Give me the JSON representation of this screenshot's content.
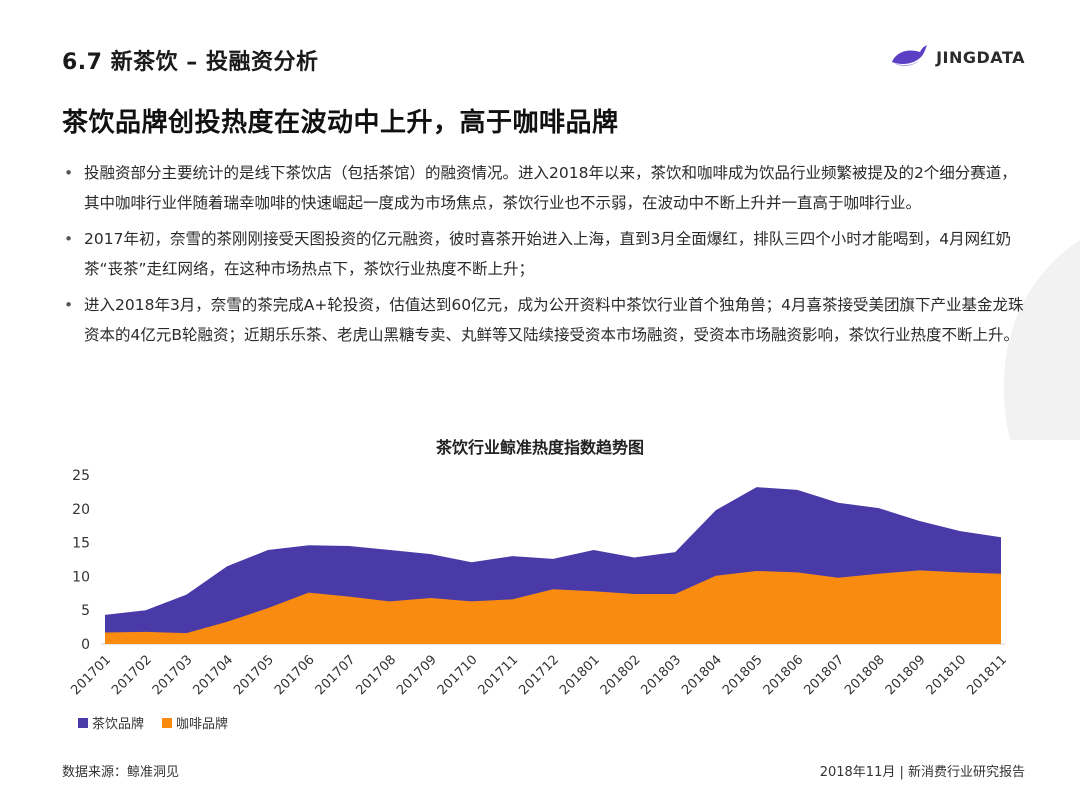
{
  "header": {
    "section_title": "6.7 新茶饮 – 投融资分析",
    "logo_text": "JINGDATA"
  },
  "headline": "茶饮品牌创投热度在波动中上升，高于咖啡品牌",
  "bullets": [
    "投融资部分主要统计的是线下茶饮店（包括茶馆）的融资情况。进入2018年以来，茶饮和咖啡成为饮品行业频繁被提及的2个细分赛道，其中咖啡行业伴随着瑞幸咖啡的快速崛起一度成为市场焦点，茶饮行业也不示弱，在波动中不断上升并一直高于咖啡行业。",
    "2017年初，奈雪的茶刚刚接受天图投资的亿元融资，彼时喜茶开始进入上海，直到3月全面爆红，排队三四个小时才能喝到，4月网红奶茶“丧茶”走红网络，在这种市场热点下，茶饮行业热度不断上升；",
    "进入2018年3月，奈雪的茶完成A+轮投资，估值达到60亿元，成为公开资料中茶饮行业首个独角兽；4月喜茶接受美团旗下产业基金龙珠资本的4亿元B轮融资；近期乐乐茶、老虎山黑糖专卖、丸鲜等又陆续接受资本市场融资，受资本市场融资影响，茶饮行业热度不断上升。"
  ],
  "chart_data": {
    "type": "area",
    "title": "茶饮行业鲸准热度指数趋势图",
    "categories": [
      "201701",
      "201702",
      "201703",
      "201704",
      "201705",
      "201706",
      "201707",
      "201708",
      "201709",
      "201710",
      "201711",
      "201712",
      "201801",
      "201802",
      "201803",
      "201804",
      "201805",
      "201806",
      "201807",
      "201808",
      "201809",
      "201810",
      "201811"
    ],
    "series": [
      {
        "name": "茶饮品牌",
        "color": "#4a3aa8",
        "values": [
          4.3,
          5.0,
          7.3,
          11.5,
          13.9,
          14.6,
          14.5,
          13.9,
          13.3,
          12.1,
          13.0,
          12.6,
          13.9,
          12.8,
          13.6,
          19.8,
          23.2,
          22.8,
          20.9,
          20.1,
          18.2,
          16.7,
          15.8
        ]
      },
      {
        "name": "咖啡品牌",
        "color": "#f98b10",
        "values": [
          1.7,
          1.8,
          1.6,
          3.3,
          5.3,
          7.6,
          7.0,
          6.3,
          6.8,
          6.3,
          6.6,
          8.1,
          7.8,
          7.4,
          7.4,
          10.1,
          10.8,
          10.6,
          9.8,
          10.4,
          10.9,
          10.6,
          10.4
        ]
      }
    ],
    "y_ticks": [
      0,
      5,
      10,
      15,
      20,
      25
    ],
    "ylim": [
      0,
      25
    ],
    "legend_position": "bottom-left"
  },
  "footer": {
    "source": "数据来源：鲸准洞见",
    "report": "2018年11月 | 新消费行业研究报告"
  }
}
